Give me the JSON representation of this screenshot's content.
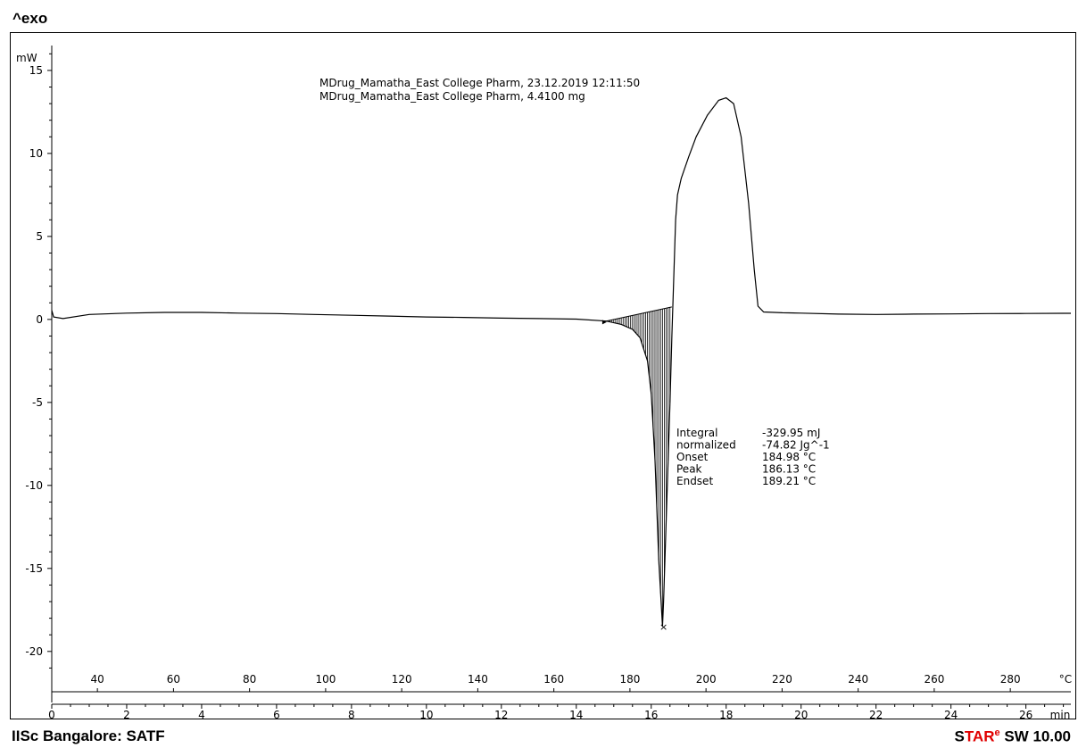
{
  "header": {
    "exo_label": "^exo"
  },
  "footer": {
    "left": "IISc Bangalore: SATF",
    "brand_s": "S",
    "brand_tar": "TAR",
    "brand_e": "e",
    "brand_rest": " SW 10.00"
  },
  "colors": {
    "brand_red": "#e00000",
    "curve": "#000000"
  },
  "chart_data": {
    "type": "line",
    "ylabel": "mW",
    "ylim": [
      -22,
      16.5
    ],
    "yticks": [
      15,
      10,
      5,
      0,
      -5,
      -10,
      -15,
      -20
    ],
    "x_temperature": {
      "unit": "°C",
      "ticks": [
        40,
        60,
        80,
        100,
        120,
        140,
        160,
        180,
        200,
        220,
        240,
        260,
        280
      ]
    },
    "x_time": {
      "unit": "min",
      "ticks": [
        0,
        2,
        4,
        6,
        8,
        10,
        12,
        14,
        16,
        18,
        20,
        22,
        24,
        26
      ]
    },
    "xlim_min": [
      0,
      27.2
    ],
    "annotations": {
      "line1": "MDrug_Mamatha_East College Pharm, 23.12.2019 12:11:50",
      "line2": "MDrug_Mamatha_East College Pharm, 4.4100 mg"
    },
    "results": [
      {
        "label": "Integral",
        "value": "-329.95 mJ"
      },
      {
        "label": "  normalized",
        "value": "-74.82 Jg^-1"
      },
      {
        "label": "Onset",
        "value": "184.98 °C"
      },
      {
        "label": "Peak",
        "value": "186.13 °C"
      },
      {
        "label": "Endset",
        "value": "189.21 °C"
      }
    ],
    "series": [
      {
        "x_min": [
          0,
          0.05,
          0.3,
          1,
          2,
          3,
          4,
          5,
          6,
          7,
          8,
          9,
          10,
          11,
          12,
          13,
          14,
          14.8,
          15.2,
          15.5,
          15.7,
          15.9,
          16.0,
          16.1,
          16.2,
          16.3,
          16.33,
          16.4,
          16.5,
          16.55,
          16.6,
          16.65,
          16.7,
          16.8,
          17.0,
          17.2,
          17.5,
          17.8,
          18.0,
          18.2,
          18.4,
          18.6,
          18.75,
          18.85,
          19.0,
          19.5,
          20,
          21,
          22,
          23,
          24,
          25,
          26,
          27,
          27.2
        ],
        "y_mw": [
          0.55,
          0.15,
          0.05,
          0.3,
          0.38,
          0.42,
          0.42,
          0.38,
          0.35,
          0.3,
          0.25,
          0.2,
          0.15,
          0.12,
          0.08,
          0.05,
          0.02,
          -0.1,
          -0.3,
          -0.6,
          -1.1,
          -2.5,
          -4.5,
          -8.5,
          -14.5,
          -18.5,
          -17.0,
          -12.0,
          -5.0,
          -1.0,
          2.5,
          6.0,
          7.5,
          8.5,
          9.8,
          11.0,
          12.3,
          13.2,
          13.35,
          13.0,
          11.0,
          7.0,
          3.0,
          0.8,
          0.45,
          0.4,
          0.38,
          0.32,
          0.3,
          0.32,
          0.33,
          0.35,
          0.36,
          0.37,
          0.37
        ]
      }
    ],
    "baseline": {
      "x_min": [
        14.8,
        16.55
      ],
      "y_mw": [
        -0.1,
        0.75
      ]
    }
  }
}
